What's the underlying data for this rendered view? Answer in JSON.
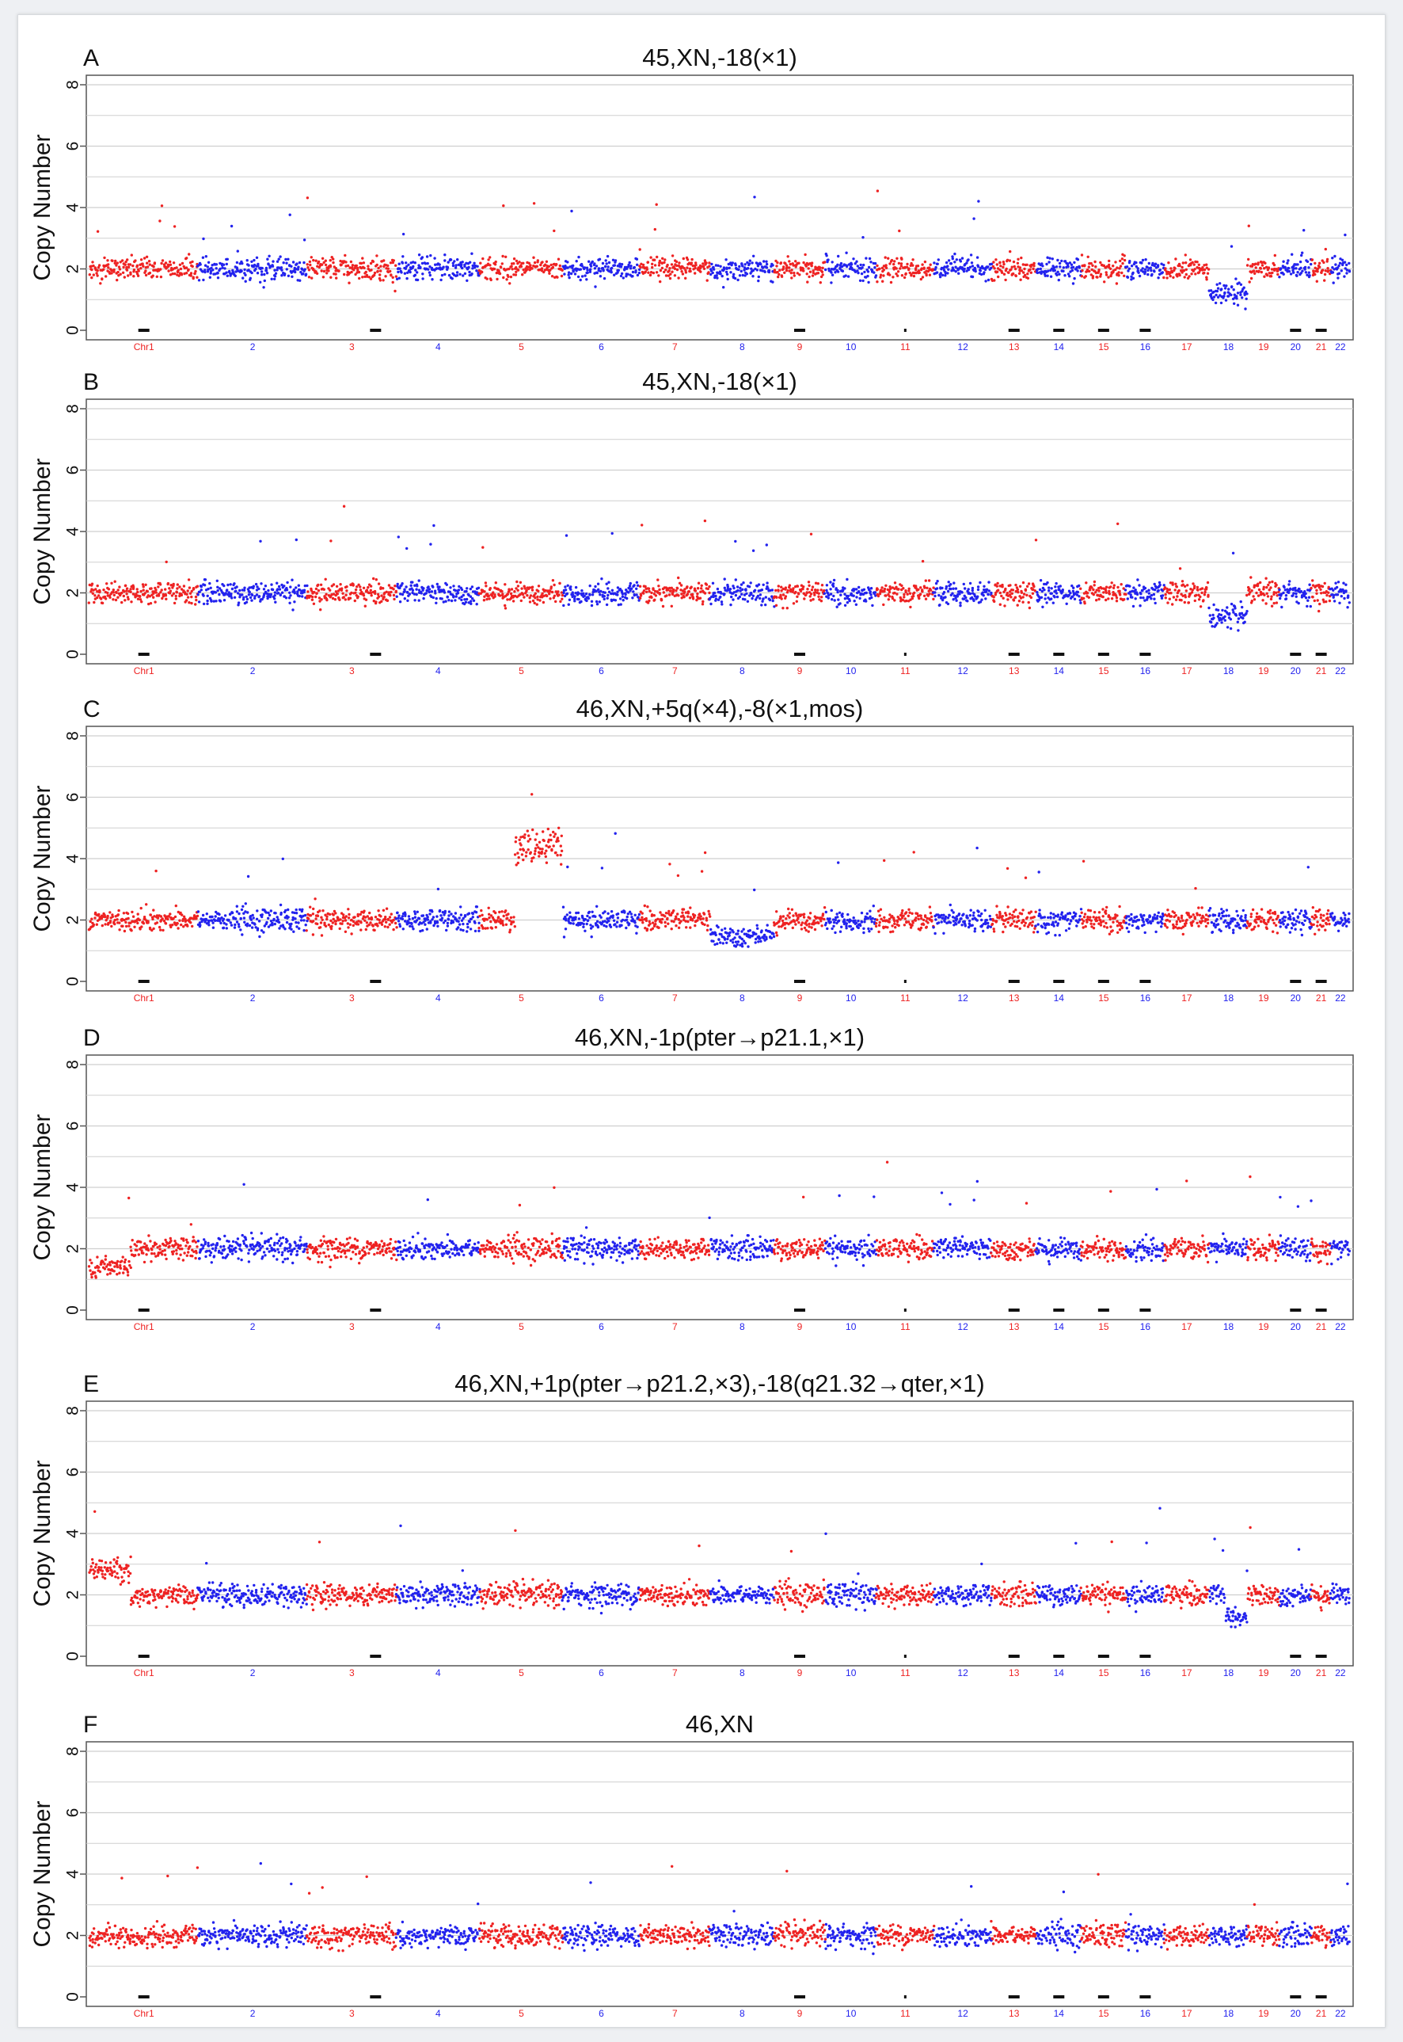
{
  "chart_data": [
    {
      "type": "scatter",
      "panel": "A",
      "title": "45,XN,-18(×1)",
      "ylabel": "Copy Number",
      "ylim": [
        0,
        8
      ],
      "yticks": [
        0,
        2,
        4,
        6,
        8
      ],
      "grid": true,
      "baseline_copy_number": 2,
      "segments": [
        {
          "chr": "18",
          "copy_number": 1.2
        }
      ]
    },
    {
      "type": "scatter",
      "panel": "B",
      "title": "45,XN,-18(×1)",
      "ylabel": "Copy Number",
      "ylim": [
        0,
        8
      ],
      "yticks": [
        0,
        2,
        4,
        6,
        8
      ],
      "grid": true,
      "baseline_copy_number": 2,
      "segments": [
        {
          "chr": "18",
          "copy_number": 1.2
        }
      ]
    },
    {
      "type": "scatter",
      "panel": "C",
      "title": "46,XN,+5q(×4),-8(×1,mos)",
      "ylabel": "Copy Number",
      "ylim": [
        0,
        8
      ],
      "yticks": [
        0,
        2,
        4,
        6,
        8
      ],
      "grid": true,
      "baseline_copy_number": 2,
      "segments": [
        {
          "chr": "5",
          "region": "q",
          "copy_number": 4.4
        },
        {
          "chr": "8",
          "copy_number": 1.5
        }
      ]
    },
    {
      "type": "scatter",
      "panel": "D",
      "title": "46,XN,-1p(pter→p21.1,×1)",
      "ylabel": "Copy Number",
      "ylim": [
        0,
        8
      ],
      "yticks": [
        0,
        2,
        4,
        6,
        8
      ],
      "grid": true,
      "baseline_copy_number": 2,
      "segments": [
        {
          "chr": "1",
          "region": "p",
          "copy_number": 1.4
        }
      ]
    },
    {
      "type": "scatter",
      "panel": "E",
      "title": "46,XN,+1p(pter→p21.2,×3),-18(q21.32→qter,×1)",
      "ylabel": "Copy Number",
      "ylim": [
        0,
        8
      ],
      "yticks": [
        0,
        2,
        4,
        6,
        8
      ],
      "grid": true,
      "baseline_copy_number": 2,
      "segments": [
        {
          "chr": "1",
          "region": "p",
          "copy_number": 2.8
        },
        {
          "chr": "18",
          "region": "q",
          "copy_number": 1.2
        }
      ]
    },
    {
      "type": "scatter",
      "panel": "F",
      "title": "46,XN",
      "ylabel": "Copy Number",
      "ylim": [
        0,
        8
      ],
      "yticks": [
        0,
        2,
        4,
        6,
        8
      ],
      "grid": true,
      "baseline_copy_number": 2,
      "segments": []
    }
  ],
  "chromosomes": [
    "Chr1",
    "2",
    "3",
    "4",
    "5",
    "6",
    "7",
    "8",
    "9",
    "10",
    "11",
    "12",
    "13",
    "14",
    "15",
    "16",
    "17",
    "18",
    "19",
    "20",
    "21",
    "22"
  ],
  "chromosome_weights": [
    8.5,
    8.5,
    7.0,
    6.5,
    6.5,
    6.0,
    5.5,
    5.0,
    4.0,
    4.0,
    4.5,
    4.5,
    3.5,
    3.5,
    3.5,
    3.0,
    3.5,
    3.0,
    2.5,
    2.5,
    1.5,
    1.5
  ],
  "colors": {
    "odd_chromosome": "#ee2222",
    "even_chromosome": "#2222ee",
    "grid": "#cfcfcf",
    "axis": "#555555",
    "centromere_mark": "#111111"
  }
}
